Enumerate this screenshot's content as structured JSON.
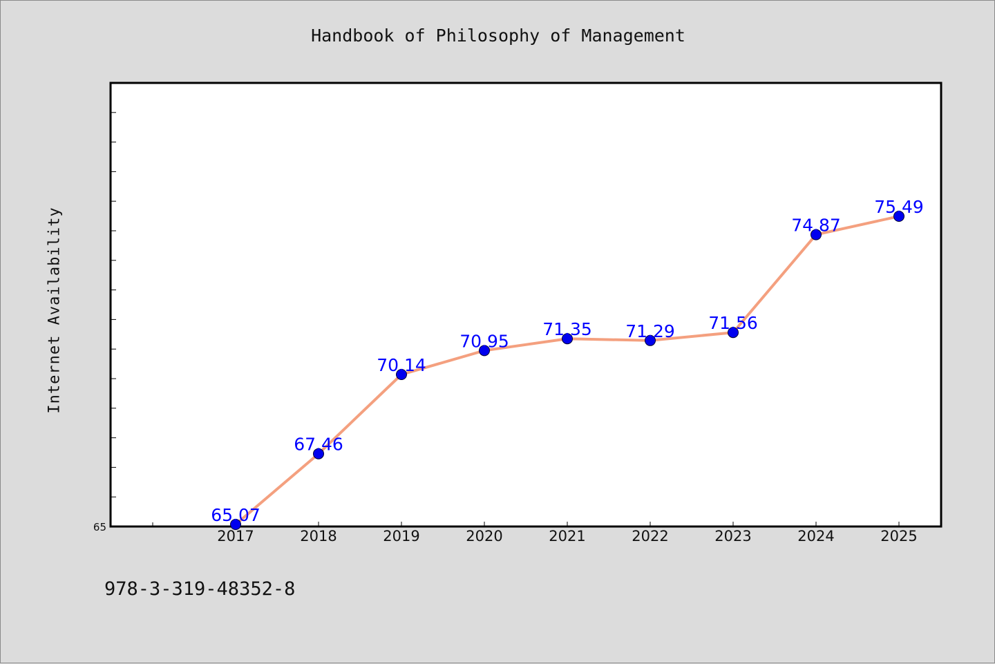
{
  "chart_data": {
    "type": "line",
    "title": "Handbook of Philosophy of Management",
    "xlabel": "",
    "ylabel": "Internet Availability",
    "categories": [
      "2017",
      "2018",
      "2019",
      "2020",
      "2021",
      "2022",
      "2023",
      "2024",
      "2025"
    ],
    "series": [
      {
        "values": [
          65.07,
          67.46,
          70.14,
          70.95,
          71.35,
          71.29,
          71.56,
          74.87,
          75.49
        ],
        "labels": [
          "65.07",
          "67.46",
          "70.14",
          "70.95",
          "71.35",
          "71.29",
          "71.56",
          "74.87",
          "75.49"
        ],
        "line_color": "#f4a07f",
        "marker_color": "#0000ee",
        "label_color": "#0000ff"
      }
    ],
    "ylim": [
      65,
      80
    ],
    "yticks_labeled": [
      "65"
    ],
    "grid": false,
    "legend": "none",
    "colors": {
      "background": "#dcdcdc",
      "plot_area": "#ffffff",
      "axis": "#000000"
    }
  },
  "footer": {
    "code": "978-3-319-48352-8"
  }
}
